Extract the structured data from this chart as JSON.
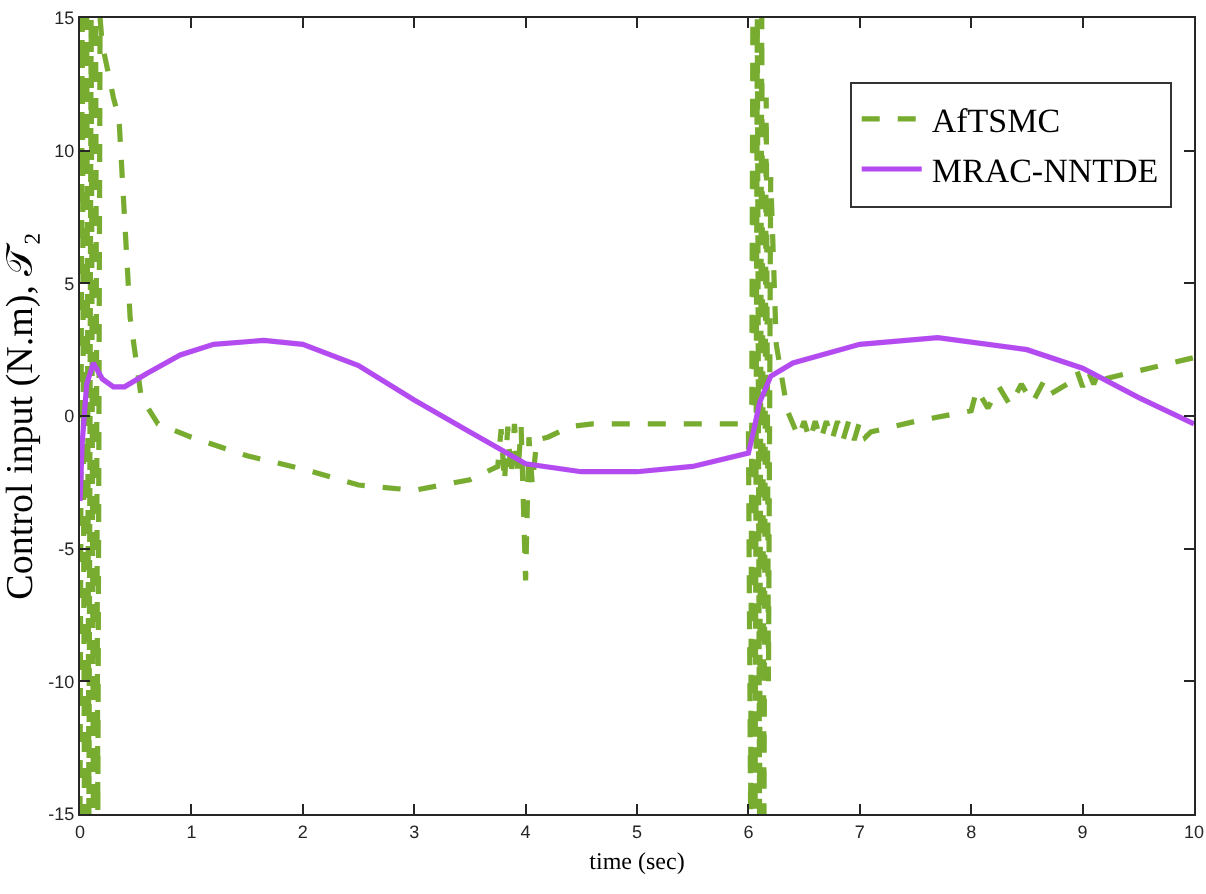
{
  "chart_data": {
    "type": "line",
    "xlabel": "time (sec)",
    "ylabel": "Control input (N.m), 𝒯₂",
    "xlim": [
      0,
      10
    ],
    "ylim": [
      -15,
      15
    ],
    "xticks": [
      0,
      1,
      2,
      3,
      4,
      5,
      6,
      7,
      8,
      9,
      10
    ],
    "yticks": [
      -15,
      -10,
      -5,
      0,
      5,
      10,
      15
    ],
    "grid": false,
    "legend": "top right",
    "marker": "none",
    "series": [
      {
        "name": "AfTSMC",
        "color": "#77ac30",
        "line_style": "dashed",
        "x": [
          0,
          0.02,
          0.04,
          0.06,
          0.08,
          0.1,
          0.12,
          0.14,
          0.16,
          0.18,
          0.2,
          0.25,
          0.3,
          0.35,
          0.45,
          0.55,
          0.7,
          1.0,
          1.5,
          2.0,
          2.5,
          3.0,
          3.5,
          3.75,
          3.78,
          3.81,
          3.84,
          3.87,
          3.9,
          3.93,
          3.96,
          4.0,
          4.03,
          4.06,
          4.1,
          4.2,
          4.4,
          4.6,
          5.0,
          5.5,
          6.0,
          6.02,
          6.04,
          6.06,
          6.08,
          6.1,
          6.12,
          6.14,
          6.16,
          6.18,
          6.2,
          6.25,
          6.35,
          6.45,
          6.5,
          6.55,
          6.6,
          6.65,
          6.7,
          6.75,
          6.8,
          6.85,
          6.9,
          6.95,
          7.0,
          7.05,
          7.1,
          7.5,
          8.0,
          8.05,
          8.15,
          8.25,
          8.35,
          8.45,
          8.55,
          8.65,
          8.7,
          8.9,
          8.95,
          9.0,
          9.05,
          9.1,
          9.15,
          9.2,
          9.6,
          10
        ],
        "values": [
          -15,
          15,
          -15,
          15,
          -15,
          15,
          -15,
          15,
          -15,
          15,
          14,
          13,
          12,
          11.2,
          3.7,
          0.7,
          -0.3,
          -0.8,
          -1.5,
          -2.0,
          -2.6,
          -2.8,
          -2.4,
          -1.9,
          -0.5,
          -2.5,
          -0.4,
          -2.3,
          -0.3,
          -2.2,
          -0.4,
          -6.2,
          -0.8,
          -2.6,
          -0.9,
          -0.8,
          -0.4,
          -0.3,
          -0.3,
          -0.3,
          -0.3,
          -15,
          15,
          -15,
          15,
          -15,
          15,
          -15,
          12,
          -10,
          9,
          2.7,
          0.2,
          -0.8,
          -0.2,
          -0.9,
          -0.2,
          -0.9,
          -0.2,
          -0.9,
          -0.2,
          -0.9,
          -0.2,
          -0.9,
          -0.2,
          -0.8,
          -0.6,
          -0.2,
          0.2,
          1.0,
          0.3,
          1.1,
          0.4,
          1.2,
          0.5,
          1.3,
          0.8,
          1.3,
          1.7,
          1.1,
          1.7,
          1.2,
          1.7,
          1.4,
          1.8,
          2.2
        ]
      },
      {
        "name": "MRAC-NNTDE",
        "color": "#b34bf0",
        "line_style": "solid",
        "x": [
          0,
          0.02,
          0.06,
          0.12,
          0.2,
          0.3,
          0.4,
          0.6,
          0.9,
          1.2,
          1.65,
          2.0,
          2.5,
          3.0,
          3.5,
          4.0,
          4.5,
          5.0,
          5.5,
          6.0,
          6.05,
          6.1,
          6.2,
          6.4,
          7.0,
          7.7,
          8.5,
          9.0,
          9.5,
          10
        ],
        "values": [
          -3.2,
          -1,
          1.2,
          2.0,
          1.4,
          1.1,
          1.1,
          1.6,
          2.3,
          2.7,
          2.85,
          2.7,
          1.9,
          0.6,
          -0.6,
          -1.8,
          -2.1,
          -2.1,
          -1.9,
          -1.4,
          -0.5,
          0.5,
          1.5,
          2.0,
          2.7,
          2.95,
          2.5,
          1.8,
          0.7,
          -0.3
        ]
      }
    ]
  }
}
